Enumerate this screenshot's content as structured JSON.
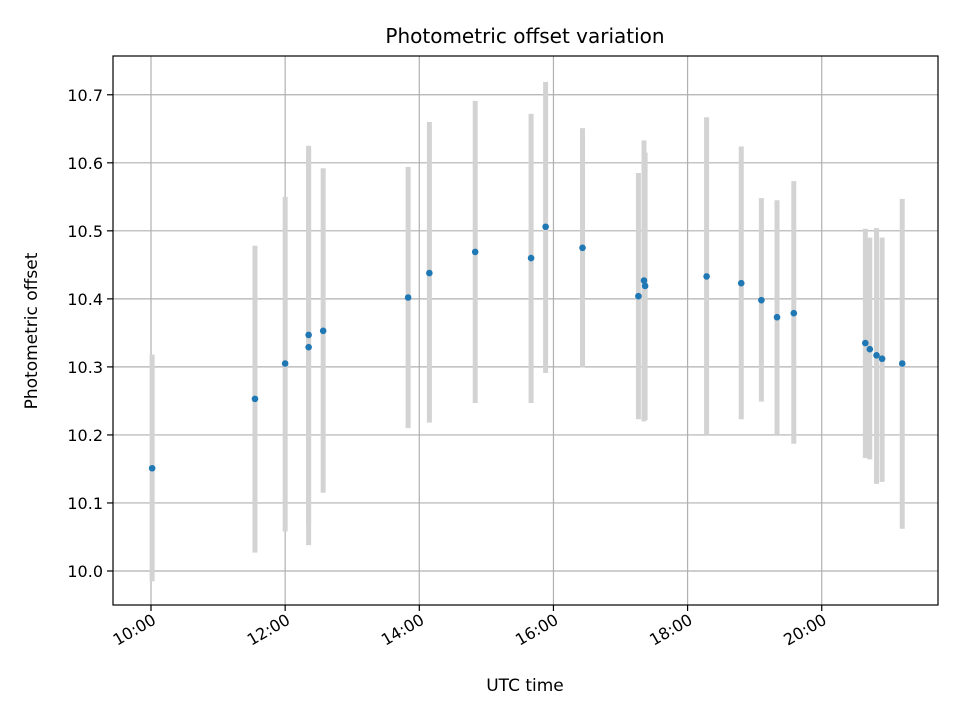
{
  "chart_data": {
    "type": "scatter",
    "title": "Photometric offset variation",
    "xlabel": "UTC time",
    "ylabel": "Photometric offset",
    "x_ticks": [
      "10:00",
      "12:00",
      "14:00",
      "16:00",
      "18:00",
      "20:00"
    ],
    "y_ticks": [
      "10.0",
      "10.1",
      "10.2",
      "10.3",
      "10.4",
      "10.5",
      "10.6",
      "10.7"
    ],
    "xlim": [
      "09:26",
      "21:44"
    ],
    "ylim": [
      9.95,
      10.757
    ],
    "grid": true,
    "point_color": "#1f77b4",
    "errorbar_color": "#d3d3d3",
    "points": [
      {
        "t": "10:01",
        "y": 10.151,
        "lo": 9.985,
        "hi": 10.318
      },
      {
        "t": "11:33",
        "y": 10.253,
        "lo": 10.027,
        "hi": 10.478
      },
      {
        "t": "12:00",
        "y": 10.305,
        "lo": 10.058,
        "hi": 10.55
      },
      {
        "t": "12:21",
        "y": 10.347,
        "lo": 10.068,
        "hi": 10.625
      },
      {
        "t": "12:21",
        "y": 10.329,
        "lo": 10.038,
        "hi": 10.622
      },
      {
        "t": "12:34",
        "y": 10.353,
        "lo": 10.115,
        "hi": 10.592
      },
      {
        "t": "13:50",
        "y": 10.402,
        "lo": 10.21,
        "hi": 10.594
      },
      {
        "t": "14:09",
        "y": 10.438,
        "lo": 10.218,
        "hi": 10.66
      },
      {
        "t": "14:50",
        "y": 10.469,
        "lo": 10.247,
        "hi": 10.691
      },
      {
        "t": "15:40",
        "y": 10.46,
        "lo": 10.247,
        "hi": 10.672
      },
      {
        "t": "15:53",
        "y": 10.506,
        "lo": 10.291,
        "hi": 10.719
      },
      {
        "t": "16:26",
        "y": 10.475,
        "lo": 10.299,
        "hi": 10.651
      },
      {
        "t": "17:16",
        "y": 10.404,
        "lo": 10.223,
        "hi": 10.585
      },
      {
        "t": "17:21",
        "y": 10.427,
        "lo": 10.22,
        "hi": 10.633
      },
      {
        "t": "17:22",
        "y": 10.419,
        "lo": 10.222,
        "hi": 10.615
      },
      {
        "t": "18:17",
        "y": 10.433,
        "lo": 10.2,
        "hi": 10.667
      },
      {
        "t": "18:48",
        "y": 10.423,
        "lo": 10.223,
        "hi": 10.624
      },
      {
        "t": "19:06",
        "y": 10.398,
        "lo": 10.249,
        "hi": 10.548
      },
      {
        "t": "19:20",
        "y": 10.373,
        "lo": 10.2,
        "hi": 10.545
      },
      {
        "t": "19:35",
        "y": 10.379,
        "lo": 10.187,
        "hi": 10.573
      },
      {
        "t": "20:39",
        "y": 10.335,
        "lo": 10.166,
        "hi": 10.503
      },
      {
        "t": "20:43",
        "y": 10.326,
        "lo": 10.164,
        "hi": 10.49
      },
      {
        "t": "20:49",
        "y": 10.317,
        "lo": 10.128,
        "hi": 10.504
      },
      {
        "t": "20:54",
        "y": 10.312,
        "lo": 10.131,
        "hi": 10.49
      },
      {
        "t": "21:12",
        "y": 10.305,
        "lo": 10.062,
        "hi": 10.547
      }
    ]
  }
}
